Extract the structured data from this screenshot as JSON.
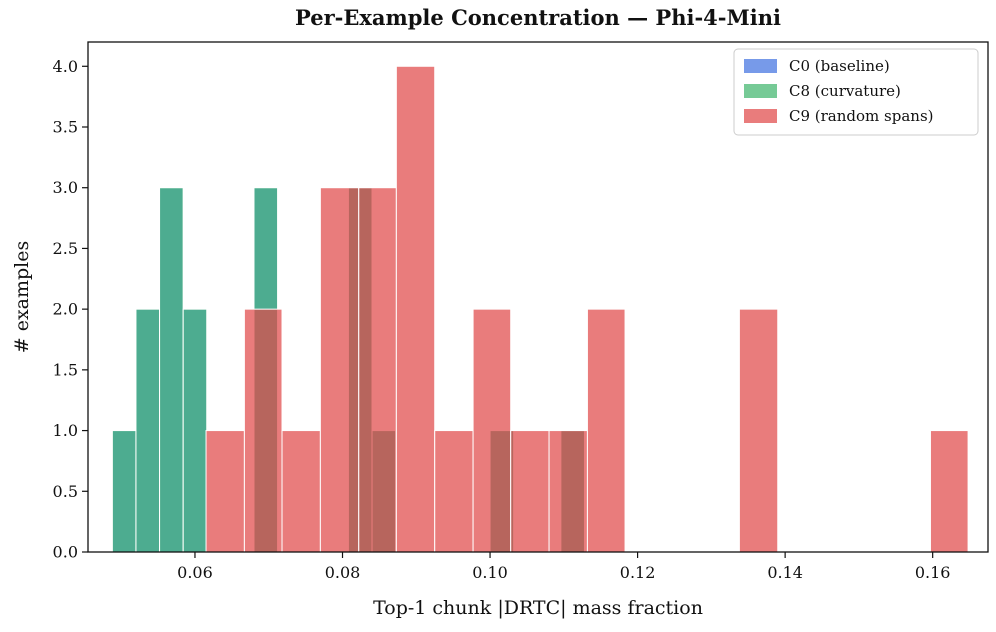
{
  "chart_data": {
    "type": "histogram",
    "title": "Per-Example Concentration — Phi-4-Mini",
    "xlabel": "Top-1 chunk |DRTC| mass fraction",
    "ylabel": "# examples",
    "xlim": [
      0.0455,
      0.1675
    ],
    "ylim": [
      0,
      4.2
    ],
    "xticks": [
      0.06,
      0.08,
      0.1,
      0.12,
      0.14,
      0.16
    ],
    "xtick_labels": [
      "0.06",
      "0.08",
      "0.10",
      "0.12",
      "0.14",
      "0.16"
    ],
    "yticks": [
      0.0,
      0.5,
      1.0,
      1.5,
      2.0,
      2.5,
      3.0,
      3.5,
      4.0
    ],
    "ytick_labels": [
      "0.0",
      "0.5",
      "1.0",
      "1.5",
      "2.0",
      "2.5",
      "3.0",
      "3.5",
      "4.0"
    ],
    "legend_position": "top-right",
    "series": [
      {
        "name": "C0 (baseline)",
        "color": "#3d6fe0",
        "alpha": 0.7,
        "bins": [
          {
            "x0": 0.0488,
            "x1": 0.052,
            "count": 1
          },
          {
            "x0": 0.052,
            "x1": 0.0552,
            "count": 2
          },
          {
            "x0": 0.0552,
            "x1": 0.0584,
            "count": 3
          },
          {
            "x0": 0.0584,
            "x1": 0.0616,
            "count": 2
          },
          {
            "x0": 0.068,
            "x1": 0.0712,
            "count": 3
          },
          {
            "x0": 0.0808,
            "x1": 0.084,
            "count": 3
          },
          {
            "x0": 0.084,
            "x1": 0.0872,
            "count": 1
          },
          {
            "x0": 0.1,
            "x1": 0.1032,
            "count": 1
          },
          {
            "x0": 0.1096,
            "x1": 0.1128,
            "count": 1
          }
        ]
      },
      {
        "name": "C8 (curvature)",
        "color": "#3cb36a",
        "alpha": 0.7,
        "bins": [
          {
            "x0": 0.0488,
            "x1": 0.052,
            "count": 1
          },
          {
            "x0": 0.052,
            "x1": 0.0552,
            "count": 2
          },
          {
            "x0": 0.0552,
            "x1": 0.0584,
            "count": 3
          },
          {
            "x0": 0.0584,
            "x1": 0.0616,
            "count": 2
          },
          {
            "x0": 0.068,
            "x1": 0.0712,
            "count": 3
          },
          {
            "x0": 0.0808,
            "x1": 0.084,
            "count": 3
          },
          {
            "x0": 0.084,
            "x1": 0.0872,
            "count": 1
          },
          {
            "x0": 0.1,
            "x1": 0.1032,
            "count": 1
          },
          {
            "x0": 0.1096,
            "x1": 0.1128,
            "count": 1
          }
        ]
      },
      {
        "name": "C9 (random spans)",
        "color": "#e04a4a",
        "alpha": 0.72,
        "bins": [
          {
            "x0": 0.0615,
            "x1": 0.0667,
            "count": 1
          },
          {
            "x0": 0.0667,
            "x1": 0.0718,
            "count": 2
          },
          {
            "x0": 0.0718,
            "x1": 0.077,
            "count": 1
          },
          {
            "x0": 0.077,
            "x1": 0.0822,
            "count": 3
          },
          {
            "x0": 0.0822,
            "x1": 0.0873,
            "count": 3
          },
          {
            "x0": 0.0873,
            "x1": 0.0925,
            "count": 4
          },
          {
            "x0": 0.0925,
            "x1": 0.0977,
            "count": 1
          },
          {
            "x0": 0.0977,
            "x1": 0.1028,
            "count": 2
          },
          {
            "x0": 0.1028,
            "x1": 0.108,
            "count": 1
          },
          {
            "x0": 0.108,
            "x1": 0.1132,
            "count": 1
          },
          {
            "x0": 0.1132,
            "x1": 0.1183,
            "count": 2
          },
          {
            "x0": 0.1338,
            "x1": 0.139,
            "count": 2
          },
          {
            "x0": 0.1597,
            "x1": 0.1648,
            "count": 1
          }
        ]
      }
    ]
  }
}
